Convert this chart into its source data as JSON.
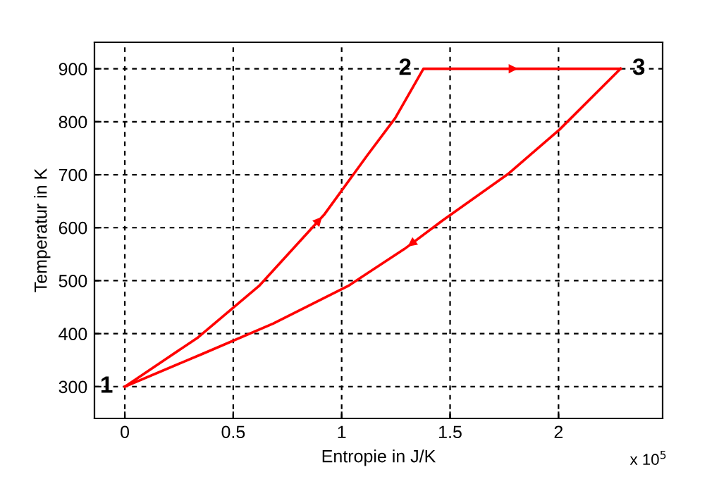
{
  "chart_data": {
    "type": "line",
    "xlabel": "Entropie in J/K",
    "ylabel": "Temperatur in K",
    "series": [
      {
        "color": "#ff0000",
        "x": [
          0,
          0.338,
          0.619,
          0.922,
          1.117,
          1.247,
          1.377,
          2.286
        ],
        "values": [
          300,
          393,
          490,
          626,
          736,
          807,
          900,
          900
        ]
      },
      {
        "color": "#ff0000",
        "x": [
          0,
          0.359,
          0.684,
          1.03,
          1.29,
          1.463,
          1.766,
          2.004,
          2.286
        ],
        "values": [
          300,
          362,
          419,
          490,
          560,
          613,
          701,
          785,
          900
        ]
      }
    ],
    "xlim": [
      -0.14,
      2.48
    ],
    "xticks": [
      0,
      0.5,
      1,
      1.5,
      2
    ],
    "ylim": [
      240,
      950
    ],
    "yticks": [
      300,
      400,
      500,
      600,
      700,
      800,
      900
    ],
    "grid": true,
    "marker": "none",
    "line_style": "solid",
    "annotations": [
      {
        "text": "1",
        "x": 0,
        "y": 300
      },
      {
        "text": "2",
        "x": 1.377,
        "y": 900
      },
      {
        "text": "3",
        "x": 2.286,
        "y": 900
      },
      "x 10$^{5}$"
    ]
  }
}
